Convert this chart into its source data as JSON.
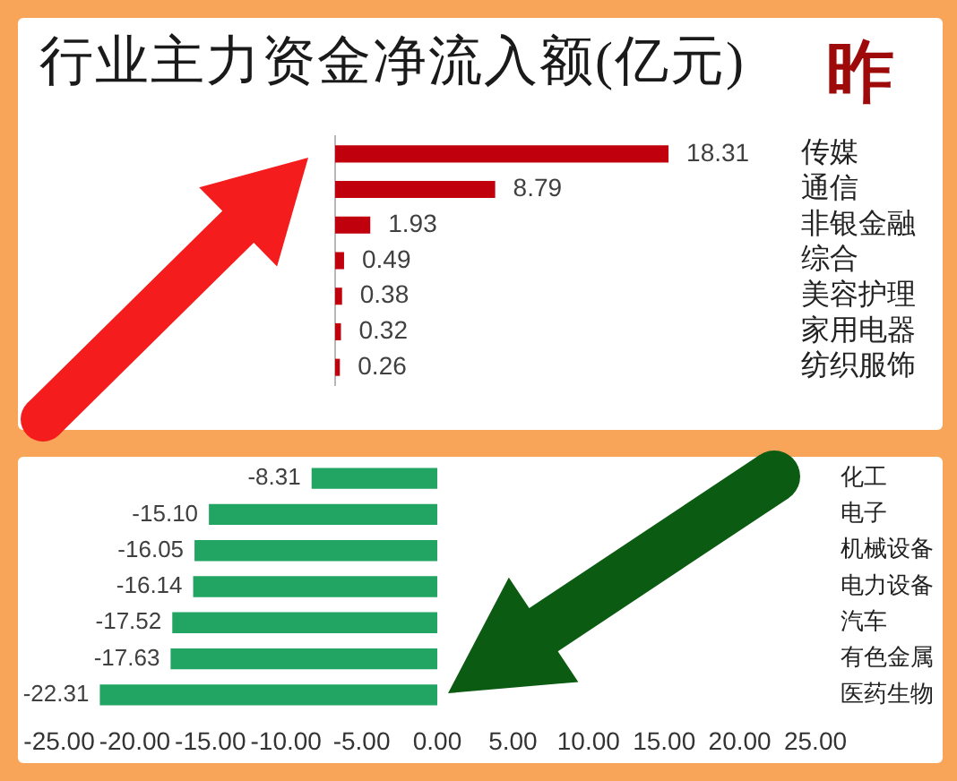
{
  "chart_data": [
    {
      "type": "bar",
      "orientation": "horizontal",
      "title": "行业主力资金净流入额(亿元)",
      "subtitle": "昨",
      "categories": [
        "传媒",
        "通信",
        "非银金融",
        "综合",
        "美容护理",
        "家用电器",
        "纺织服饰"
      ],
      "values": [
        18.31,
        8.79,
        1.93,
        0.49,
        0.38,
        0.32,
        0.26
      ],
      "color": "#c0000c",
      "data_labels": true,
      "tick_labels": "y"
    },
    {
      "type": "bar",
      "orientation": "horizontal",
      "categories": [
        "化工",
        "电子",
        "机械设备",
        "电力设备",
        "汽车",
        "有色金属",
        "医药生物"
      ],
      "values": [
        -8.31,
        -15.1,
        -16.05,
        -16.14,
        -17.52,
        -17.63,
        -22.31
      ],
      "value_labels": [
        "-8.31",
        "-15.10",
        "-16.05",
        "-16.14",
        "-17.52",
        "-17.63",
        "-22.31"
      ],
      "color": "#22a563",
      "xlim": [
        -25,
        25
      ],
      "xticks": [
        {
          "value": -25,
          "label": "-25.00"
        },
        {
          "value": -20,
          "label": "-20.00"
        },
        {
          "value": -15,
          "label": "-15.00"
        },
        {
          "value": -10,
          "label": "-10.00"
        },
        {
          "value": -5,
          "label": "-5.00"
        },
        {
          "value": 0,
          "label": "0.00"
        },
        {
          "value": 5,
          "label": "5.00"
        },
        {
          "value": 10,
          "label": "10.00"
        },
        {
          "value": 15,
          "label": "15.00"
        },
        {
          "value": 20,
          "label": "20.00"
        },
        {
          "value": 25,
          "label": "25.00"
        }
      ]
    }
  ]
}
